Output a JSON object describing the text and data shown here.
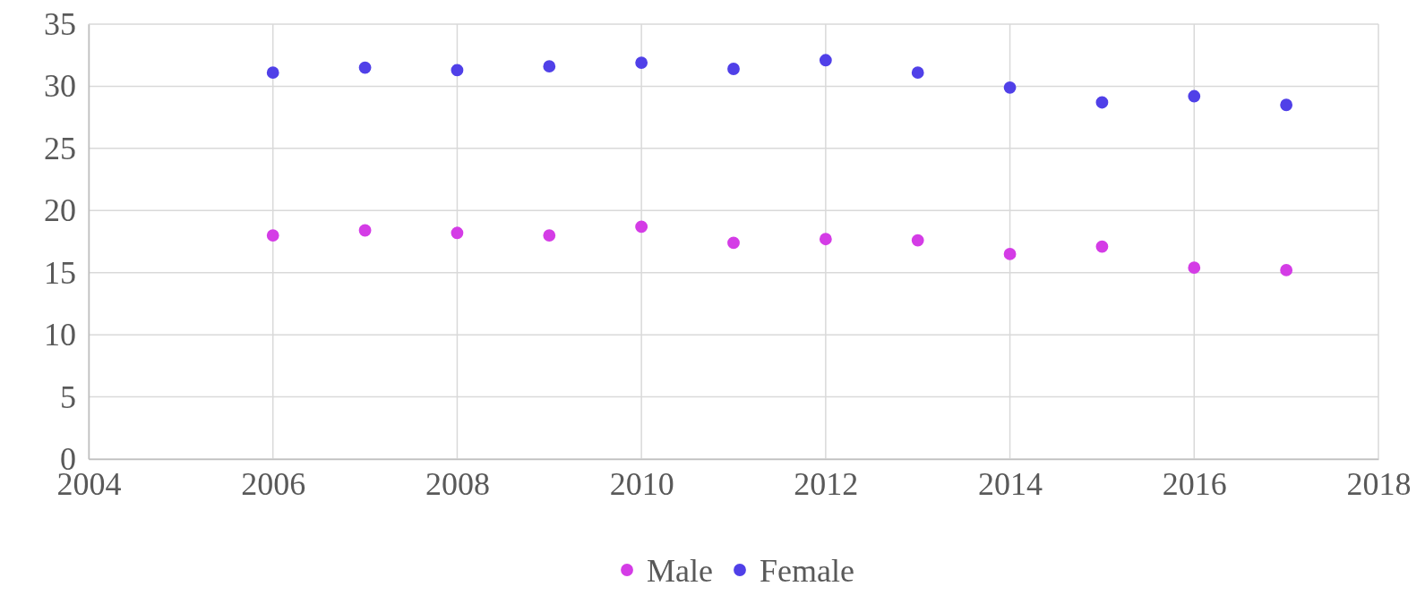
{
  "chart_data": {
    "type": "scatter",
    "x": [
      2006,
      2007,
      2008,
      2009,
      2010,
      2011,
      2012,
      2013,
      2014,
      2015,
      2016,
      2017
    ],
    "series": [
      {
        "name": "Male",
        "color": "#d43ce6",
        "values": [
          18.0,
          18.4,
          18.2,
          18.0,
          18.7,
          17.4,
          17.7,
          17.6,
          16.5,
          17.1,
          15.4,
          15.2
        ]
      },
      {
        "name": "Female",
        "color": "#5040e8",
        "values": [
          31.1,
          31.5,
          31.3,
          31.6,
          31.9,
          31.4,
          32.1,
          31.1,
          29.9,
          28.7,
          29.2,
          28.5
        ]
      }
    ],
    "xlim": [
      2004,
      2018
    ],
    "xticks": [
      2004,
      2006,
      2008,
      2010,
      2012,
      2014,
      2016,
      2018
    ],
    "ylim": [
      0,
      35
    ],
    "yticks": [
      0,
      5,
      10,
      15,
      20,
      25,
      30,
      35
    ],
    "grid": true,
    "legend": "bottom",
    "marker": "circle"
  }
}
